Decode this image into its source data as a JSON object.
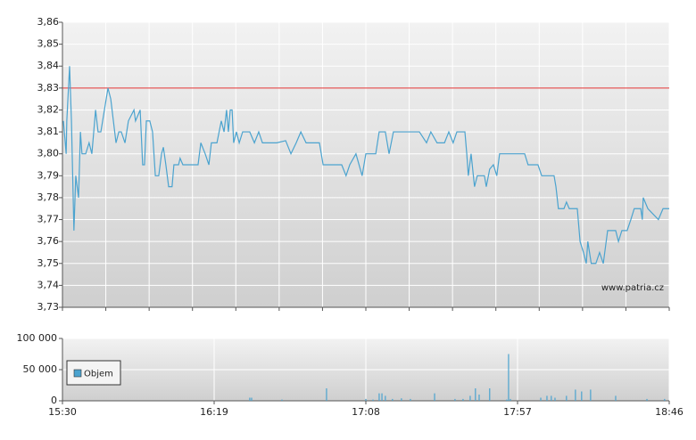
{
  "chart_data": [
    {
      "type": "line",
      "x": [
        930.3,
        931.2,
        931.4,
        932.3,
        932.9,
        933.7,
        934.3,
        935.2,
        935.8,
        936.3,
        937.5,
        938.6,
        939.5,
        940.7,
        941.5,
        942.4,
        944.7,
        945.6,
        947.3,
        948.2,
        949.0,
        950.2,
        951.3,
        953.1,
        953.6,
        955.1,
        955.9,
        956.5,
        957.1,
        958.2,
        959.1,
        960.0,
        961.1,
        962.0,
        962.6,
        963.4,
        964.3,
        965.4,
        966.0,
        967.5,
        968.0,
        968.9,
        973.8,
        974.7,
        976.1,
        977.3,
        978.1,
        979.9,
        981.3,
        982.2,
        983.0,
        983.6,
        984.2,
        984.8,
        985.3,
        986.2,
        987.1,
        988.2,
        990.5,
        992.0,
        993.4,
        994.6,
        999.2,
        1002.1,
        1003.8,
        1005.5,
        1007.0,
        1008.7,
        1013.0,
        1014.2,
        1020.2,
        1021.6,
        1022.8,
        1024.8,
        1026.8,
        1028.0,
        1031.2,
        1032.3,
        1034.3,
        1035.5,
        1036.9,
        1043.8,
        1045.3,
        1047.6,
        1049.0,
        1051.0,
        1053.4,
        1054.8,
        1056.2,
        1057.4,
        1060.0,
        1060.6,
        1061.1,
        1062.0,
        1063.1,
        1064.0,
        1066.3,
        1066.9,
        1068.0,
        1069.2,
        1070.3,
        1071.2,
        1079.3,
        1080.4,
        1083.6,
        1084.8,
        1088.8,
        1089.4,
        1090.2,
        1092.0,
        1092.8,
        1093.7,
        1096.3,
        1097.2,
        1098.3,
        1099.2,
        1099.7,
        1100.8,
        1102.3,
        1103.5,
        1104.7,
        1106.1,
        1108.7,
        1109.6,
        1110.7,
        1112.4,
        1113.6,
        1114.7,
        1116.8,
        1117.3,
        1117.6,
        1119.1,
        1122.5,
        1124.0,
        1126
      ],
      "values": [
        3.815,
        3.8,
        3.815,
        3.84,
        3.815,
        3.765,
        3.79,
        3.78,
        3.81,
        3.8,
        3.8,
        3.805,
        3.8,
        3.82,
        3.81,
        3.81,
        3.83,
        3.825,
        3.805,
        3.81,
        3.81,
        3.805,
        3.815,
        3.82,
        3.815,
        3.82,
        3.795,
        3.795,
        3.815,
        3.815,
        3.81,
        3.79,
        3.79,
        3.8,
        3.803,
        3.795,
        3.785,
        3.785,
        3.795,
        3.795,
        3.798,
        3.795,
        3.795,
        3.805,
        3.8,
        3.795,
        3.805,
        3.805,
        3.815,
        3.81,
        3.82,
        3.81,
        3.82,
        3.82,
        3.805,
        3.81,
        3.805,
        3.81,
        3.81,
        3.805,
        3.81,
        3.805,
        3.805,
        3.806,
        3.8,
        3.805,
        3.81,
        3.805,
        3.805,
        3.795,
        3.795,
        3.79,
        3.795,
        3.8,
        3.79,
        3.8,
        3.8,
        3.81,
        3.81,
        3.8,
        3.81,
        3.81,
        3.81,
        3.805,
        3.81,
        3.805,
        3.805,
        3.81,
        3.805,
        3.81,
        3.81,
        3.8,
        3.79,
        3.8,
        3.785,
        3.79,
        3.79,
        3.785,
        3.793,
        3.795,
        3.79,
        3.8,
        3.8,
        3.795,
        3.795,
        3.79,
        3.79,
        3.785,
        3.775,
        3.775,
        3.778,
        3.775,
        3.775,
        3.76,
        3.755,
        3.75,
        3.76,
        3.75,
        3.75,
        3.755,
        3.75,
        3.765,
        3.765,
        3.76,
        3.765,
        3.765,
        3.77,
        3.775,
        3.775,
        3.77,
        3.78,
        3.775,
        3.77,
        3.775,
        3.775
      ],
      "color": "#4ba3cf",
      "reference_line": 3.83,
      "reference_color": "#e03030",
      "xlim": [
        930,
        1126
      ],
      "xticks": [
        930,
        944,
        958,
        972,
        986,
        1000,
        1014,
        1028,
        1042,
        1056,
        1070,
        1084,
        1098,
        1112,
        1126
      ],
      "ylim": [
        3.73,
        3.86
      ],
      "yticks": [
        {
          "value": 3.73,
          "label": "3,73"
        },
        {
          "value": 3.74,
          "label": "3,74"
        },
        {
          "value": 3.75,
          "label": "3,75"
        },
        {
          "value": 3.76,
          "label": "3,76"
        },
        {
          "value": 3.77,
          "label": "3,77"
        },
        {
          "value": 3.78,
          "label": "3,78"
        },
        {
          "value": 3.79,
          "label": "3,79"
        },
        {
          "value": 3.8,
          "label": "3,80"
        },
        {
          "value": 3.81,
          "label": "3,81"
        },
        {
          "value": 3.82,
          "label": "3,82"
        },
        {
          "value": 3.83,
          "label": "3,83"
        },
        {
          "value": 3.84,
          "label": "3,84"
        },
        {
          "value": 3.85,
          "label": "3,85"
        },
        {
          "value": 3.86,
          "label": "3,86"
        }
      ],
      "grid": true,
      "watermark": "www.patria.cz"
    },
    {
      "type": "bar",
      "x": [
        990.5,
        991.1,
        1000.9,
        1015.3,
        1028.0,
        1030.3,
        1032.3,
        1033.2,
        1034.3,
        1036.6,
        1039.5,
        1042.4,
        1050.2,
        1056.8,
        1059.4,
        1061.7,
        1063.4,
        1064.6,
        1068.0,
        1073.5,
        1074.1,
        1074.7,
        1084.5,
        1086.5,
        1087.9,
        1089.1,
        1092.8,
        1095.7,
        1097.7,
        1100.6,
        1108.7,
        1118.8,
        1124.5
      ],
      "series": [
        {
          "name": "Objem",
          "color": "#4ba3cf",
          "values": [
            5000,
            5000,
            2000,
            20000,
            3000,
            2000,
            12000,
            12000,
            8000,
            3000,
            4000,
            3000,
            12000,
            3000,
            3000,
            8000,
            20000,
            10000,
            20000,
            2000,
            75000,
            3000,
            5000,
            8000,
            8000,
            5000,
            8000,
            18000,
            15000,
            18000,
            8000,
            3000,
            3000
          ]
        }
      ],
      "xlim": [
        930,
        1126
      ],
      "xticks": [
        {
          "value": 930,
          "label": "15:30"
        },
        {
          "value": 979,
          "label": "16:19"
        },
        {
          "value": 1028,
          "label": "17:08"
        },
        {
          "value": 1077,
          "label": "17:57"
        },
        {
          "value": 1126,
          "label": "18:46"
        }
      ],
      "ylim": [
        0,
        100000
      ],
      "yticks": [
        0,
        {
          "value": 50000,
          "label": "50 000"
        },
        {
          "value": 100000,
          "label": "100 000"
        }
      ],
      "grid": true,
      "legend": "upper-left"
    }
  ]
}
